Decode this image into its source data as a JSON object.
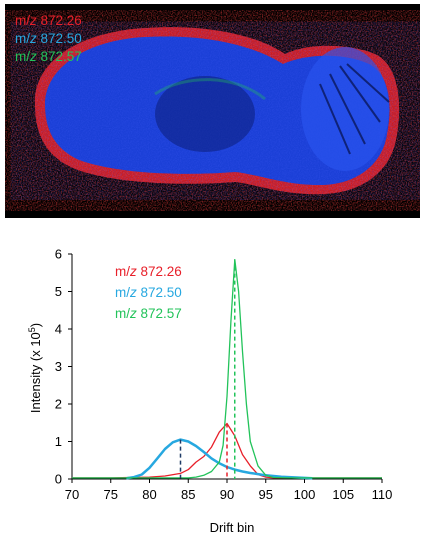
{
  "image_panel": {
    "legend": [
      {
        "prefix": "m/",
        "italic": "z",
        "value": " 872.26",
        "color": "#e8202a"
      },
      {
        "prefix": "m/",
        "italic": "z",
        "value": " 872.50",
        "color": "#27a8e0"
      },
      {
        "prefix": "m/",
        "italic": "z",
        "value": " 872.57",
        "color": "#22c35a"
      }
    ],
    "colors": {
      "background": "#000000",
      "tissue": "#1a3fd6",
      "rim": "#d91a1a"
    }
  },
  "chart_data": {
    "type": "line",
    "title": "",
    "xlabel": "Drift bin",
    "ylabel_parts": {
      "main": "Intensity (x 10",
      "sup": "5",
      "end": ")"
    },
    "xlim": [
      70,
      110
    ],
    "ylim": [
      0,
      6
    ],
    "xticks": [
      70,
      75,
      80,
      85,
      90,
      95,
      100,
      105,
      110
    ],
    "yticks": [
      0,
      1,
      2,
      3,
      4,
      5,
      6
    ],
    "grid": false,
    "legend_position": "top-left",
    "series": [
      {
        "name_prefix": "m/",
        "name_italic": "z",
        "name_value": " 872.26",
        "color": "#e8202a",
        "peak_x": 90,
        "x": [
          70,
          75,
          80,
          82,
          84,
          85,
          86,
          87,
          88,
          89,
          90,
          91,
          92,
          93,
          94,
          95,
          96,
          98,
          100,
          105,
          110
        ],
        "values": [
          0.03,
          0.03,
          0.05,
          0.08,
          0.15,
          0.25,
          0.45,
          0.6,
          0.85,
          1.25,
          1.48,
          1.15,
          0.65,
          0.35,
          0.12,
          0.05,
          0.03,
          0.03,
          0.03,
          0.03,
          0.03
        ]
      },
      {
        "name_prefix": "m/",
        "name_italic": "z",
        "name_value": " 872.50",
        "color": "#27a8e0",
        "peak_x": 84,
        "x": [
          77,
          78,
          79,
          80,
          81,
          82,
          83,
          84,
          85,
          86,
          87,
          88,
          89,
          90,
          91,
          92,
          93,
          94,
          95,
          96,
          97,
          98,
          99,
          100,
          101
        ],
        "values": [
          0.02,
          0.05,
          0.12,
          0.3,
          0.55,
          0.8,
          0.98,
          1.05,
          1.0,
          0.88,
          0.72,
          0.55,
          0.42,
          0.32,
          0.25,
          0.2,
          0.16,
          0.13,
          0.1,
          0.08,
          0.06,
          0.05,
          0.04,
          0.03,
          0.02
        ]
      },
      {
        "name_prefix": "m/",
        "name_italic": "z",
        "name_value": " 872.57",
        "color": "#22c35a",
        "peak_x": 91,
        "x": [
          70,
          75,
          80,
          85,
          86,
          87,
          88,
          89,
          89.5,
          90,
          90.5,
          91,
          91.5,
          92,
          92.5,
          93,
          94,
          95,
          96,
          98,
          100,
          105,
          110
        ],
        "values": [
          0.03,
          0.03,
          0.03,
          0.03,
          0.05,
          0.1,
          0.2,
          0.45,
          0.9,
          2.2,
          4.2,
          5.85,
          5.0,
          3.4,
          2.0,
          1.0,
          0.35,
          0.1,
          0.04,
          0.03,
          0.03,
          0.03,
          0.03
        ]
      }
    ]
  }
}
